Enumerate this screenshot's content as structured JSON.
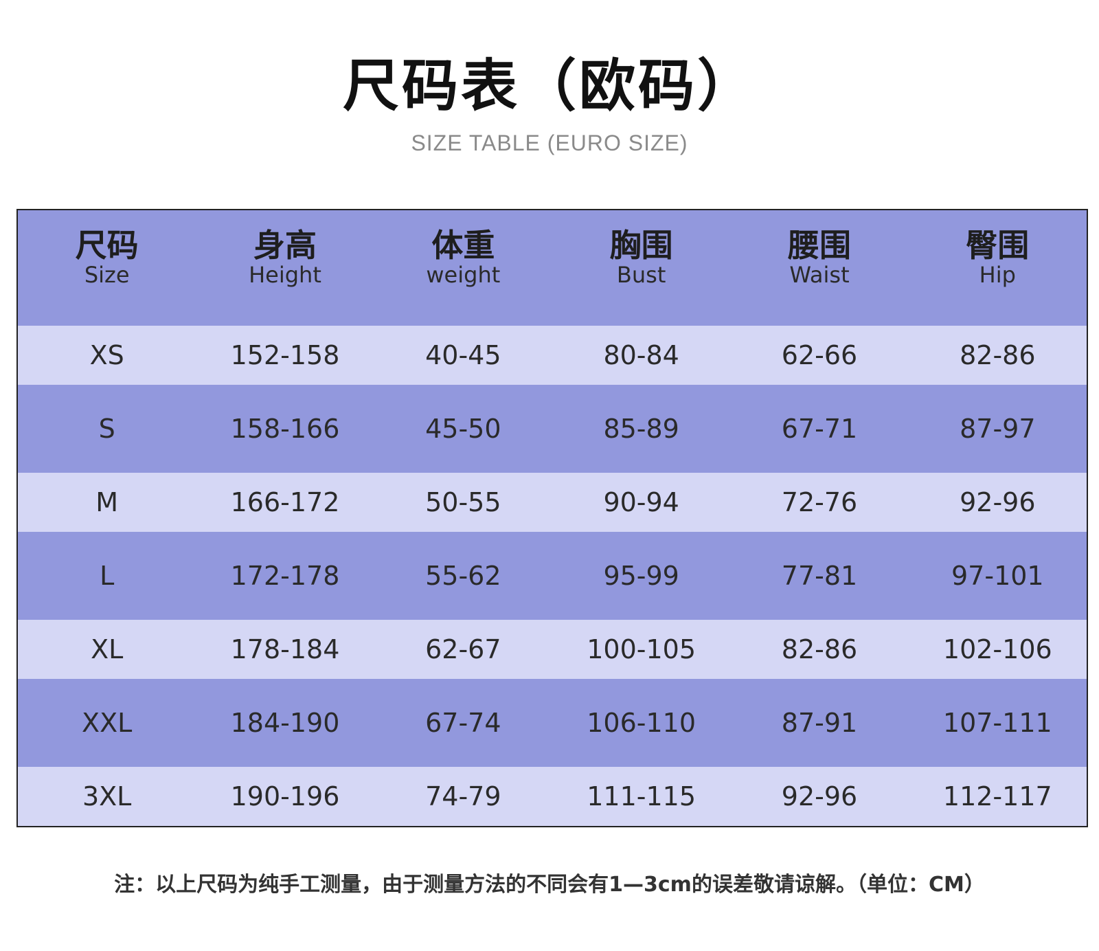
{
  "title": "尺码表（欧码）",
  "subtitle": "SIZE TABLE (EURO SIZE)",
  "table": {
    "headers": [
      {
        "cn": "尺码",
        "en": "Size"
      },
      {
        "cn": "身高",
        "en": "Height"
      },
      {
        "cn": "体重",
        "en": "weight"
      },
      {
        "cn": "胸围",
        "en": "Bust"
      },
      {
        "cn": "腰围",
        "en": "Waist"
      },
      {
        "cn": "臀围",
        "en": "Hip"
      }
    ],
    "rows": [
      [
        "XS",
        "152-158",
        "40-45",
        "80-84",
        "62-66",
        "82-86"
      ],
      [
        "S",
        "158-166",
        "45-50",
        "85-89",
        "67-71",
        "87-97"
      ],
      [
        "M",
        "166-172",
        "50-55",
        "90-94",
        "72-76",
        "92-96"
      ],
      [
        "L",
        "172-178",
        "55-62",
        "95-99",
        "77-81",
        "97-101"
      ],
      [
        "XL",
        "178-184",
        "62-67",
        "100-105",
        "82-86",
        "102-106"
      ],
      [
        "XXL",
        "184-190",
        "67-74",
        "106-110",
        "87-91",
        "107-111"
      ],
      [
        "3XL",
        "190-196",
        "74-79",
        "111-115",
        "92-96",
        "112-117"
      ]
    ]
  },
  "note": "注：以上尺码为纯手工测量，由于测量方法的不同会有1—3cm的误差敬请谅解。（单位：CM）",
  "colors": {
    "header_bg": "#9298dd",
    "row_light": "#d5d7f5",
    "row_dark": "#9298dd"
  }
}
